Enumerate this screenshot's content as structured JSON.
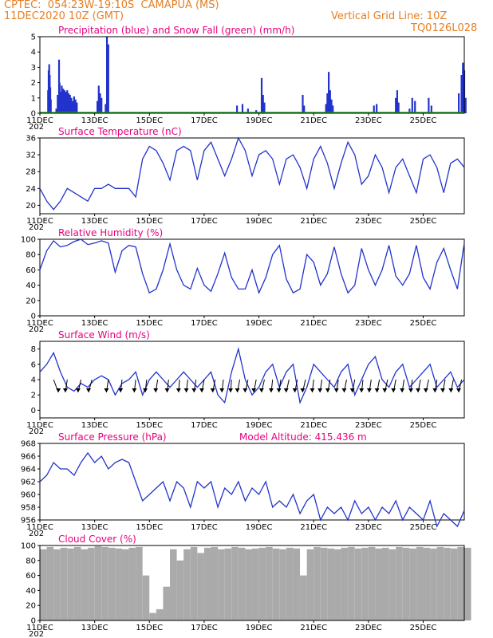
{
  "header": {
    "station": "CPTEC:  054:23W-19:10S  CAMAPUA (MS)",
    "run": "11DEC2020 10Z (GMT)",
    "grid_note": "Vertical Grid Line: 10Z",
    "code": "TQ0126L028"
  },
  "colors": {
    "header": "#e67e22",
    "title": "#e6007e",
    "line": "#2233cc",
    "snow": "#22aa22",
    "cloud": "#aaaaaa"
  },
  "x_axis": {
    "ticks": [
      "11DEC",
      "13DEC",
      "15DEC",
      "17DEC",
      "19DEC",
      "21DEC",
      "23DEC",
      "25DEC"
    ],
    "year_fragment": "202"
  },
  "chart_data": [
    {
      "type": "bar",
      "title": "Precipitation (blue) and Snow Fall (green) (mm/h)",
      "ylim": [
        0,
        5
      ],
      "yticks": [
        0,
        1,
        2,
        3,
        4,
        5
      ],
      "series": [
        {
          "name": "Precipitation",
          "color": "#2233cc",
          "points": [
            [
              0.3,
              1.5
            ],
            [
              0.32,
              2.8
            ],
            [
              0.34,
              3.2
            ],
            [
              0.36,
              2.5
            ],
            [
              0.38,
              1.7
            ],
            [
              0.4,
              0.9
            ],
            [
              0.6,
              0.3
            ],
            [
              0.65,
              1.2
            ],
            [
              0.7,
              3.5
            ],
            [
              0.72,
              2.0
            ],
            [
              0.75,
              1.4
            ],
            [
              0.8,
              1.8
            ],
            [
              0.85,
              1.6
            ],
            [
              0.9,
              1.5
            ],
            [
              0.95,
              1.4
            ],
            [
              1.0,
              1.5
            ],
            [
              1.05,
              1.3
            ],
            [
              1.1,
              1.2
            ],
            [
              1.15,
              1.0
            ],
            [
              1.2,
              0.8
            ],
            [
              1.25,
              1.1
            ],
            [
              1.3,
              0.9
            ],
            [
              1.35,
              0.7
            ],
            [
              2.1,
              0.8
            ],
            [
              2.15,
              1.8
            ],
            [
              2.2,
              1.3
            ],
            [
              2.25,
              1.0
            ],
            [
              2.4,
              0.6
            ],
            [
              2.45,
              5.0
            ],
            [
              2.5,
              4.5
            ],
            [
              7.2,
              0.5
            ],
            [
              7.4,
              0.6
            ],
            [
              7.6,
              0.3
            ],
            [
              7.9,
              0.2
            ],
            [
              8.1,
              2.3
            ],
            [
              8.15,
              1.2
            ],
            [
              8.2,
              0.7
            ],
            [
              9.6,
              1.2
            ],
            [
              9.65,
              0.5
            ],
            [
              10.45,
              0.6
            ],
            [
              10.5,
              1.3
            ],
            [
              10.55,
              2.7
            ],
            [
              10.6,
              1.5
            ],
            [
              10.65,
              0.9
            ],
            [
              10.7,
              0.5
            ],
            [
              12.2,
              0.5
            ],
            [
              12.3,
              0.6
            ],
            [
              13.0,
              1.0
            ],
            [
              13.05,
              1.5
            ],
            [
              13.1,
              0.7
            ],
            [
              13.5,
              0.3
            ],
            [
              13.6,
              1.0
            ],
            [
              13.7,
              0.8
            ],
            [
              14.2,
              1.0
            ],
            [
              14.3,
              0.5
            ],
            [
              15.3,
              1.3
            ],
            [
              15.4,
              2.5
            ],
            [
              15.45,
              3.3
            ],
            [
              15.5,
              2.8
            ],
            [
              15.55,
              1.0
            ]
          ]
        },
        {
          "name": "Snow Fall",
          "color": "#22aa22",
          "values": 0
        }
      ]
    },
    {
      "type": "line",
      "title": "Surface Temperature (nC)",
      "ylim": [
        18,
        36
      ],
      "yticks": [
        20,
        24,
        28,
        32,
        36
      ],
      "x": [
        0,
        0.25,
        0.5,
        0.75,
        1,
        1.25,
        1.5,
        1.75,
        2,
        2.25,
        2.5,
        2.75,
        3,
        3.25,
        3.5,
        3.75,
        4,
        4.25,
        4.5,
        4.75,
        5,
        5.25,
        5.5,
        5.75,
        6,
        6.25,
        6.5,
        6.75,
        7,
        7.25,
        7.5,
        7.75,
        8,
        8.25,
        8.5,
        8.75,
        9,
        9.25,
        9.5,
        9.75,
        10,
        10.25,
        10.5,
        10.75,
        11,
        11.25,
        11.5,
        11.75,
        12,
        12.25,
        12.5,
        12.75,
        13,
        13.25,
        13.5,
        13.75,
        14,
        14.25,
        14.5,
        14.75,
        15,
        15.25,
        15.5
      ],
      "values": [
        24,
        21,
        19,
        21,
        24,
        23,
        22,
        21,
        24,
        24,
        25,
        24,
        24,
        24,
        22,
        31,
        34,
        33,
        30,
        26,
        33,
        34,
        33,
        26,
        33,
        35,
        31,
        27,
        31,
        36,
        33,
        27,
        32,
        33,
        31,
        25,
        31,
        32,
        29,
        24,
        31,
        34,
        30,
        24,
        30,
        35,
        32,
        25,
        27,
        32,
        29,
        23,
        29,
        31,
        27,
        23,
        31,
        32,
        29,
        23,
        30,
        31,
        29
      ]
    },
    {
      "type": "line",
      "title": "Relative Humidity (%)",
      "ylim": [
        0,
        100
      ],
      "yticks": [
        0,
        20,
        40,
        60,
        80,
        100
      ],
      "x": [
        0,
        0.25,
        0.5,
        0.75,
        1,
        1.25,
        1.5,
        1.75,
        2,
        2.25,
        2.5,
        2.75,
        3,
        3.25,
        3.5,
        3.75,
        4,
        4.25,
        4.5,
        4.75,
        5,
        5.25,
        5.5,
        5.75,
        6,
        6.25,
        6.5,
        6.75,
        7,
        7.25,
        7.5,
        7.75,
        8,
        8.25,
        8.5,
        8.75,
        9,
        9.25,
        9.5,
        9.75,
        10,
        10.25,
        10.5,
        10.75,
        11,
        11.25,
        11.5,
        11.75,
        12,
        12.25,
        12.5,
        12.75,
        13,
        13.25,
        13.5,
        13.75,
        14,
        14.25,
        14.5,
        14.75,
        15,
        15.25,
        15.5
      ],
      "values": [
        60,
        85,
        98,
        90,
        92,
        97,
        100,
        93,
        95,
        98,
        95,
        57,
        85,
        92,
        90,
        55,
        30,
        35,
        60,
        94,
        60,
        40,
        35,
        62,
        40,
        32,
        55,
        82,
        50,
        35,
        35,
        60,
        30,
        50,
        80,
        92,
        48,
        30,
        35,
        80,
        70,
        40,
        55,
        90,
        55,
        30,
        40,
        88,
        60,
        40,
        60,
        92,
        52,
        40,
        55,
        92,
        50,
        35,
        70,
        88,
        60,
        35,
        95
      ]
    },
    {
      "type": "line",
      "title": "Surface Wind (m/s)",
      "ylim": [
        -1,
        9
      ],
      "yticks": [
        0,
        2,
        4,
        6,
        8
      ],
      "x": [
        0,
        0.25,
        0.5,
        0.75,
        1,
        1.25,
        1.5,
        1.75,
        2,
        2.25,
        2.5,
        2.75,
        3,
        3.25,
        3.5,
        3.75,
        4,
        4.25,
        4.5,
        4.75,
        5,
        5.25,
        5.5,
        5.75,
        6,
        6.25,
        6.5,
        6.75,
        7,
        7.25,
        7.5,
        7.75,
        8,
        8.25,
        8.5,
        8.75,
        9,
        9.25,
        9.5,
        9.75,
        10,
        10.25,
        10.5,
        10.75,
        11,
        11.25,
        11.5,
        11.75,
        12,
        12.25,
        12.5,
        12.75,
        13,
        13.25,
        13.5,
        13.75,
        14,
        14.25,
        14.5,
        14.75,
        15,
        15.25,
        15.5
      ],
      "values": [
        5,
        6,
        7.5,
        5,
        3,
        2.5,
        3.5,
        3,
        4,
        4.5,
        4,
        2,
        3.5,
        4,
        5,
        2,
        4,
        5,
        4,
        3,
        4,
        5,
        4,
        3,
        4,
        5,
        2,
        1,
        5,
        8,
        4,
        2,
        3,
        5,
        6,
        3,
        5,
        6,
        1,
        3,
        6,
        5,
        4,
        3,
        5,
        6,
        2,
        4,
        6,
        7,
        4,
        3,
        5,
        6,
        3,
        4,
        5,
        6,
        3,
        4,
        5,
        3,
        4
      ],
      "arrows": [
        [
          0.5,
          1
        ],
        [
          1.0,
          -0.4
        ],
        [
          1.5,
          -0.6
        ],
        [
          1.9,
          -0.7
        ],
        [
          2.5,
          -0.4
        ],
        [
          3.0,
          -0.3
        ],
        [
          3.5,
          -0.3
        ],
        [
          3.9,
          -0.3
        ],
        [
          4.3,
          -0.4
        ],
        [
          4.7,
          -0.3
        ],
        [
          5.1,
          -0.2
        ],
        [
          5.4,
          -0.3
        ],
        [
          5.7,
          -0.4
        ],
        [
          6.0,
          -0.5
        ],
        [
          6.4,
          -0.5
        ],
        [
          6.7,
          -0.3
        ],
        [
          7.0,
          -0.2
        ],
        [
          7.3,
          -0.5
        ],
        [
          7.6,
          -0.6
        ],
        [
          7.9,
          -0.5
        ],
        [
          8.2,
          -0.6
        ],
        [
          8.5,
          -0.3
        ],
        [
          8.8,
          -0.4
        ],
        [
          9.1,
          -0.6
        ],
        [
          9.4,
          -0.5
        ],
        [
          9.7,
          -0.6
        ],
        [
          10.0,
          -0.3
        ],
        [
          10.3,
          -0.4
        ],
        [
          10.6,
          -0.5
        ],
        [
          10.9,
          -0.4
        ],
        [
          11.2,
          -0.5
        ],
        [
          11.5,
          -0.5
        ],
        [
          11.8,
          -0.3
        ],
        [
          12.1,
          -0.4
        ],
        [
          12.4,
          -0.5
        ],
        [
          12.7,
          -0.6
        ],
        [
          13.0,
          -0.5
        ],
        [
          13.3,
          -0.4
        ],
        [
          13.6,
          -0.3
        ],
        [
          13.9,
          -0.5
        ],
        [
          14.2,
          -0.6
        ],
        [
          14.5,
          -0.4
        ],
        [
          14.8,
          -0.5
        ],
        [
          15.1,
          -0.5
        ],
        [
          15.4,
          -0.6
        ]
      ]
    },
    {
      "type": "line",
      "title": "Surface Pressure (hPa)",
      "subtitle": "Model Altitude: 415.436 m",
      "ylim": [
        956,
        968
      ],
      "yticks": [
        956,
        958,
        960,
        962,
        964,
        966,
        968
      ],
      "x": [
        0,
        0.25,
        0.5,
        0.75,
        1,
        1.25,
        1.5,
        1.75,
        2,
        2.25,
        2.5,
        2.75,
        3,
        3.25,
        3.5,
        3.75,
        4,
        4.25,
        4.5,
        4.75,
        5,
        5.25,
        5.5,
        5.75,
        6,
        6.25,
        6.5,
        6.75,
        7,
        7.25,
        7.5,
        7.75,
        8,
        8.25,
        8.5,
        8.75,
        9,
        9.25,
        9.5,
        9.75,
        10,
        10.25,
        10.5,
        10.75,
        11,
        11.25,
        11.5,
        11.75,
        12,
        12.25,
        12.5,
        12.75,
        13,
        13.25,
        13.5,
        13.75,
        14,
        14.25,
        14.5,
        14.75,
        15,
        15.25,
        15.5
      ],
      "values": [
        962,
        963,
        965,
        964,
        964,
        963,
        965,
        966.5,
        965,
        966,
        964,
        965,
        965.5,
        965,
        962,
        959,
        960,
        961,
        962,
        959,
        962,
        961,
        958,
        962,
        961,
        962,
        958,
        961,
        960,
        962,
        959,
        961,
        960,
        962,
        958,
        959,
        958,
        960,
        957,
        959,
        960,
        956,
        958,
        957,
        958,
        956,
        959,
        957,
        958,
        956,
        958,
        957,
        959,
        956,
        958,
        957,
        956,
        959,
        955,
        957,
        956,
        955,
        957.5
      ]
    },
    {
      "type": "area",
      "title": "Cloud Cover (%)",
      "ylim": [
        0,
        100
      ],
      "yticks": [
        0,
        20,
        40,
        60,
        80,
        100
      ],
      "x": [
        0,
        0.25,
        0.5,
        0.75,
        1,
        1.25,
        1.5,
        1.75,
        2,
        2.25,
        2.5,
        2.75,
        3,
        3.25,
        3.5,
        3.75,
        4,
        4.25,
        4.5,
        4.75,
        5,
        5.25,
        5.5,
        5.75,
        6,
        6.25,
        6.5,
        6.75,
        7,
        7.25,
        7.5,
        7.75,
        8,
        8.25,
        8.5,
        8.75,
        9,
        9.25,
        9.5,
        9.75,
        10,
        10.25,
        10.5,
        10.75,
        11,
        11.25,
        11.5,
        11.75,
        12,
        12.25,
        12.5,
        12.75,
        13,
        13.25,
        13.5,
        13.75,
        14,
        14.25,
        14.5,
        14.75,
        15,
        15.25,
        15.5
      ],
      "values": [
        95,
        98,
        95,
        97,
        96,
        98,
        95,
        97,
        99,
        98,
        97,
        96,
        95,
        97,
        98,
        60,
        10,
        15,
        45,
        95,
        80,
        95,
        98,
        90,
        97,
        98,
        95,
        96,
        98,
        97,
        95,
        96,
        97,
        98,
        96,
        95,
        97,
        96,
        60,
        95,
        98,
        97,
        96,
        95,
        97,
        98,
        96,
        97,
        98,
        96,
        97,
        95,
        98,
        97,
        96,
        98,
        97,
        96,
        98,
        97,
        96,
        98,
        97
      ]
    }
  ]
}
